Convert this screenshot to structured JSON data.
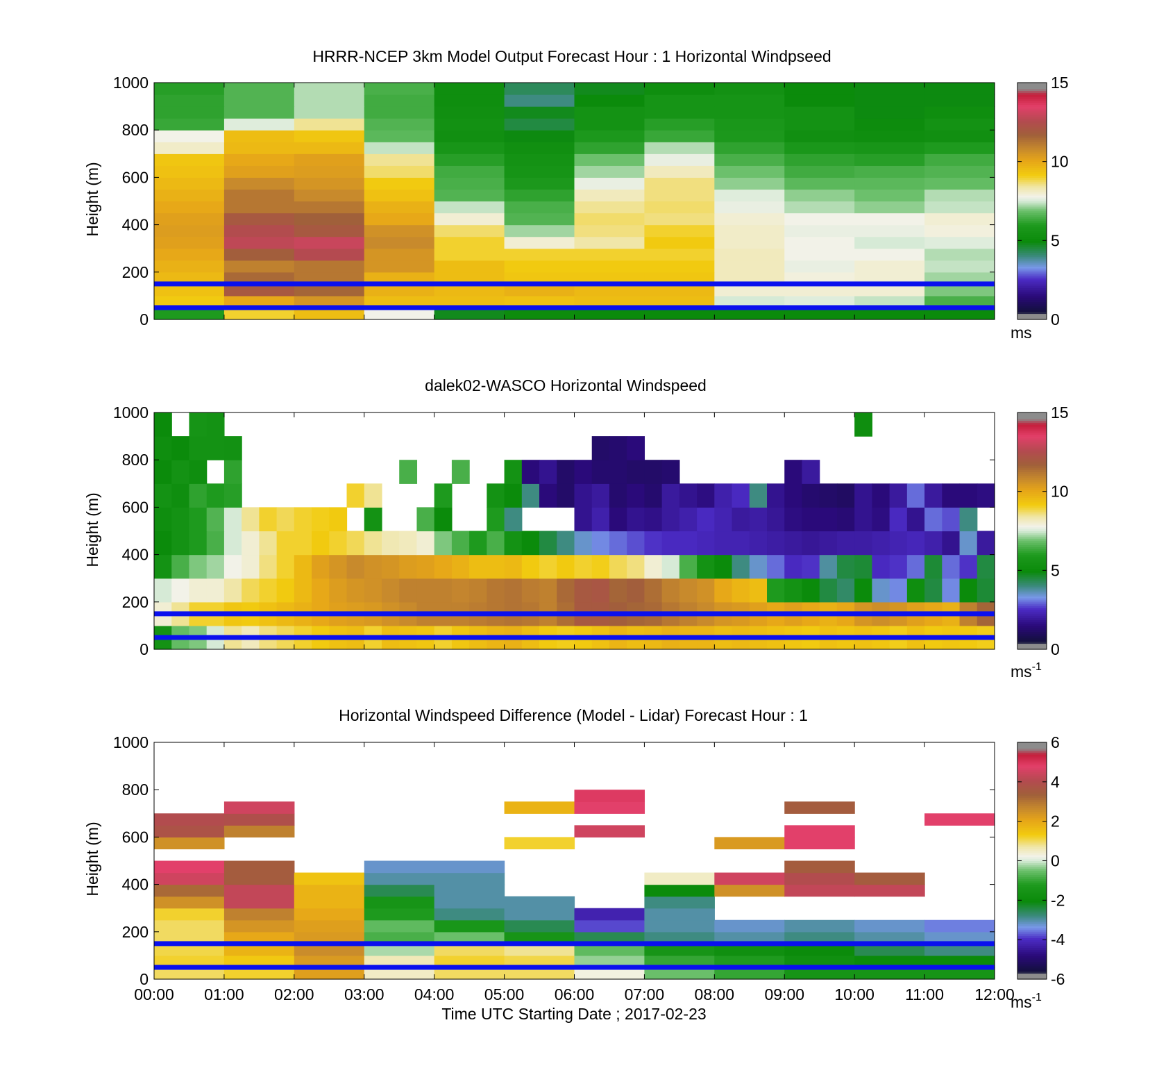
{
  "chart_data": [
    {
      "type": "heatmap",
      "title": "HRRR-NCEP 3km Model Output   Forecast Hour : 1 Horizontal Windpseed",
      "ylabel": "Height (m)",
      "xlim": [
        0,
        12
      ],
      "ylim": [
        0,
        1000
      ],
      "yticks": [
        0,
        200,
        400,
        600,
        800,
        1000
      ],
      "clim": [
        0,
        15
      ],
      "cbar_ticks": [
        0,
        5,
        10,
        15
      ],
      "cbar_unit": "ms",
      "cbar_unit_sup": "",
      "reference_lines_m": [
        50,
        150
      ],
      "x_hours": [
        0,
        1,
        2,
        3,
        4,
        5,
        6,
        7,
        8,
        9,
        10,
        11
      ],
      "cell_width_hours": 1,
      "heights_m": [
        25,
        75,
        125,
        175,
        225,
        275,
        325,
        375,
        425,
        475,
        525,
        575,
        625,
        675,
        725,
        775,
        825,
        875,
        925,
        975
      ],
      "cell_height_m": 50,
      "values": [
        [
          6,
          9,
          9.5,
          7.8,
          4.8,
          5.1,
          5,
          5,
          5,
          5,
          5,
          5
        ],
        [
          9.2,
          10,
          10.5,
          9.5,
          9.5,
          9.4,
          9.5,
          9.5,
          7.5,
          7.6,
          7.4,
          6.5
        ],
        [
          9.4,
          12,
          11.6,
          9.8,
          9.6,
          9.8,
          9.6,
          9.6,
          8,
          8,
          8,
          7
        ],
        [
          9.6,
          11.5,
          11.2,
          9.8,
          9.5,
          9.3,
          9.3,
          9.3,
          8.2,
          7.9,
          8,
          7.2
        ],
        [
          9.8,
          11,
          11.2,
          10.5,
          9.5,
          9.2,
          9.2,
          9.2,
          8.2,
          7.7,
          8,
          7.4
        ],
        [
          10,
          11.8,
          12.6,
          10.5,
          9,
          9,
          9,
          9,
          8.2,
          7.8,
          7.8,
          7.3
        ],
        [
          10.2,
          12.8,
          13,
          10.8,
          9,
          8,
          8.4,
          9.2,
          8.1,
          7.8,
          7.5,
          7.6
        ],
        [
          10.3,
          12.5,
          12,
          10.6,
          8.7,
          7.2,
          8.6,
          9,
          8.1,
          7.7,
          7.7,
          7.9
        ],
        [
          10.2,
          12,
          11.7,
          10,
          8,
          6.6,
          8.7,
          8.6,
          8,
          7.8,
          7.8,
          8
        ],
        [
          10,
          11.2,
          11.2,
          9.8,
          7.4,
          6.5,
          8.5,
          8.7,
          7.7,
          7.3,
          7.1,
          7.4
        ],
        [
          9.8,
          11.2,
          10.8,
          9.4,
          6.6,
          6.2,
          8.2,
          8.6,
          7.6,
          7.1,
          6.9,
          7.3
        ],
        [
          9.6,
          10.8,
          10.5,
          9.2,
          6.5,
          5.9,
          7.7,
          8.6,
          7.1,
          6.7,
          6.7,
          6.8
        ],
        [
          9.4,
          10.2,
          10.3,
          8.7,
          6.4,
          5.6,
          7.2,
          8.2,
          6.9,
          6.4,
          6.5,
          6.6
        ],
        [
          9.3,
          10,
          10.2,
          8.5,
          6.1,
          5.5,
          6.9,
          7.7,
          6.5,
          6.2,
          6.1,
          6.4
        ],
        [
          8.1,
          9.6,
          9.6,
          7.4,
          5.7,
          5.3,
          6.2,
          7.3,
          6.2,
          5.8,
          5.7,
          6
        ],
        [
          7.8,
          9.5,
          9.3,
          6.7,
          5.3,
          4.9,
          5.9,
          6.3,
          5.9,
          5.3,
          5.2,
          5.3
        ],
        [
          6.3,
          7.6,
          8.5,
          6.6,
          5.4,
          4.5,
          5.5,
          6.1,
          5.8,
          5.5,
          5.1,
          5.5
        ],
        [
          6.2,
          6.6,
          7.3,
          6.4,
          5.3,
          4.8,
          5.5,
          5.6,
          5.6,
          5.5,
          4.9,
          5.2
        ],
        [
          6.2,
          6.6,
          7.3,
          6.4,
          5.2,
          4,
          5,
          5.6,
          5.6,
          5,
          4.9,
          4.9
        ],
        [
          6.1,
          6.6,
          7.3,
          6.5,
          5.2,
          4.3,
          4.8,
          5.2,
          5.4,
          5,
          4.9,
          4.9
        ]
      ]
    },
    {
      "type": "heatmap",
      "title": "dalek02-WASCO  Horizontal Windspeed",
      "ylabel": "Height (m)",
      "xlim": [
        0,
        12
      ],
      "ylim": [
        0,
        1000
      ],
      "yticks": [
        0,
        200,
        400,
        600,
        800,
        1000
      ],
      "clim": [
        0,
        15
      ],
      "cbar_ticks": [
        0,
        5,
        10,
        15
      ],
      "cbar_unit": "ms",
      "cbar_unit_sup": "-1",
      "reference_lines_m": [
        50,
        150
      ],
      "x_hours": [
        0,
        0.25,
        0.5,
        0.75,
        1,
        1.25,
        1.5,
        1.75,
        2,
        2.25,
        2.5,
        2.75,
        3,
        3.25,
        3.5,
        3.75,
        4,
        4.25,
        4.5,
        4.75,
        5,
        5.25,
        5.5,
        5.75,
        6,
        6.25,
        6.5,
        6.75,
        7,
        7.25,
        7.5,
        7.75,
        8,
        8.25,
        8.5,
        8.75,
        9,
        9.25,
        9.5,
        9.75,
        10,
        10.25,
        10.5,
        10.75,
        11,
        11.25,
        11.5,
        11.75
      ],
      "cell_width_hours": 0.25,
      "heights_m": [
        50,
        150,
        250,
        350,
        450,
        550,
        650,
        750,
        850,
        950
      ],
      "cell_height_m": 100,
      "values": [
        [
          5.5,
          6.8,
          7,
          7.5,
          8.5,
          8.2,
          8.6,
          8.8,
          9,
          9.2,
          9.4,
          9.5,
          9,
          9.5,
          9.4,
          9.3,
          9,
          9.3,
          9.5,
          9.7,
          9.8,
          9.5,
          9.2,
          9.1,
          9.2,
          9.4,
          9.7,
          9.5,
          9.6,
          9.8,
          9.7,
          9.7,
          9.5,
          9.6,
          9.5,
          9.4,
          9.3,
          9.2,
          9.4,
          9.3,
          9.4,
          9.3,
          9.1,
          9.4,
          9.2,
          9.3,
          9.2,
          9.1
        ],
        [
          8,
          8.5,
          9,
          9,
          9.3,
          9.2,
          9.4,
          9.6,
          9.8,
          10,
          10.2,
          10.3,
          10.4,
          10.6,
          10.8,
          11,
          11,
          11,
          11.1,
          11.2,
          11.3,
          11.2,
          11,
          11.4,
          12,
          12,
          11.8,
          11.6,
          11.5,
          11.2,
          11,
          10.8,
          10.5,
          10.4,
          10.2,
          10,
          10.2,
          10,
          9.8,
          10,
          10.5,
          10.7,
          10.5,
          10.2,
          10,
          9.8,
          11,
          11.6
        ],
        [
          7.5,
          7.8,
          8,
          8,
          8.4,
          8.8,
          9,
          9.2,
          9.6,
          10,
          10.3,
          10.5,
          10.6,
          10.8,
          11,
          11,
          11,
          10.9,
          11,
          11.2,
          11.3,
          11.1,
          11,
          11.5,
          12,
          12.1,
          11.6,
          11.8,
          11.4,
          11,
          10.8,
          10.6,
          10,
          9.7,
          9.5,
          6,
          5.5,
          5,
          4.5,
          4.2,
          5,
          3.5,
          3.2,
          5.2,
          4.5,
          3.2,
          5,
          4.6
        ],
        [
          5.5,
          6.5,
          7,
          7.2,
          7.8,
          8,
          8.6,
          9,
          9.6,
          10.2,
          10.5,
          10.8,
          10.6,
          10.5,
          10.3,
          10.2,
          10,
          9.8,
          9.5,
          9.5,
          9.6,
          9.2,
          9,
          9.2,
          9,
          9.1,
          8.8,
          8.6,
          8,
          7.5,
          6.5,
          5.5,
          5,
          4,
          3.5,
          3,
          2.5,
          2.6,
          3.8,
          4.5,
          4.6,
          2.5,
          2.6,
          3,
          4.6,
          3,
          2.6,
          4.5
        ],
        [
          5,
          5.5,
          6,
          6.5,
          7.5,
          8,
          8.5,
          9,
          9,
          9.2,
          9,
          8.8,
          8.5,
          8.3,
          8.2,
          8,
          7,
          6.5,
          6,
          6.5,
          5.5,
          5,
          4.5,
          4,
          3.5,
          3.2,
          3,
          2.8,
          2.6,
          2.5,
          2.5,
          2.4,
          2.3,
          2.3,
          2.2,
          2.1,
          2,
          1.9,
          2,
          2.1,
          2.1,
          2.2,
          2.3,
          2.4,
          2.2,
          1.8,
          3.5,
          2
        ],
        [
          5.2,
          5.5,
          6,
          6.6,
          7.5,
          8.5,
          9,
          8.8,
          9,
          9.1,
          9.2,
          null,
          5.5,
          null,
          null,
          6.5,
          5,
          null,
          null,
          6,
          4,
          null,
          null,
          null,
          1.8,
          2.2,
          1.5,
          1.8,
          1.7,
          2,
          2.2,
          2.5,
          2.3,
          2,
          2.1,
          1.9,
          1.6,
          1.5,
          1.5,
          1.4,
          1.8,
          1.6,
          2.5,
          1.8,
          3,
          2.8,
          4,
          null
        ],
        [
          5.5,
          5.2,
          6.2,
          6,
          6.1,
          null,
          null,
          null,
          null,
          null,
          null,
          9,
          8.5,
          null,
          null,
          null,
          6,
          null,
          null,
          5.5,
          5,
          4,
          1.5,
          1.2,
          1.8,
          2,
          1.3,
          1.5,
          1.3,
          2,
          1.8,
          1.6,
          2.2,
          2.5,
          4,
          1.8,
          1.5,
          1.3,
          1.2,
          1.1,
          1.8,
          1.5,
          2,
          3,
          2,
          1.5,
          1.5,
          1.6
        ],
        [
          5,
          5.5,
          5.2,
          null,
          6.2,
          null,
          null,
          null,
          null,
          null,
          null,
          null,
          null,
          null,
          6.5,
          null,
          null,
          6.5,
          null,
          null,
          5.5,
          1.5,
          1.8,
          1.2,
          1.5,
          1.3,
          1.3,
          1.2,
          1.2,
          1.3,
          null,
          null,
          null,
          null,
          null,
          null,
          1.5,
          2,
          null,
          null,
          null,
          null,
          null,
          null,
          null,
          null,
          null,
          null
        ],
        [
          5.2,
          5,
          5.5,
          5.5,
          5.4,
          null,
          null,
          null,
          null,
          null,
          null,
          null,
          null,
          null,
          null,
          null,
          null,
          null,
          null,
          null,
          null,
          null,
          null,
          null,
          null,
          1.2,
          1.3,
          1.5,
          null,
          null,
          null,
          null,
          null,
          null,
          null,
          null,
          null,
          null,
          null,
          null,
          null,
          null,
          null,
          null,
          null,
          null,
          null,
          null
        ],
        [
          5,
          null,
          5.6,
          5.5,
          null,
          null,
          null,
          null,
          null,
          null,
          null,
          null,
          null,
          null,
          null,
          null,
          null,
          null,
          null,
          null,
          null,
          null,
          null,
          null,
          null,
          null,
          null,
          null,
          null,
          null,
          null,
          null,
          null,
          null,
          null,
          null,
          null,
          null,
          null,
          null,
          5.2,
          null,
          null,
          null,
          null,
          null,
          null,
          null
        ]
      ]
    },
    {
      "type": "heatmap",
      "title": "Horizontal Windspeed Difference (Model - Lidar) Forecast Hour : 1",
      "xlabel": "Time UTC  Starting Date ; 2017-02-23",
      "ylabel": "Height (m)",
      "xlim": [
        0,
        12
      ],
      "ylim": [
        0,
        1000
      ],
      "yticks": [
        0,
        200,
        400,
        600,
        800,
        1000
      ],
      "xticks": [
        "00:00",
        "01:00",
        "02:00",
        "03:00",
        "04:00",
        "05:00",
        "06:00",
        "07:00",
        "08:00",
        "09:00",
        "10:00",
        "11:00",
        "12:00"
      ],
      "clim": [
        -6,
        6
      ],
      "cbar_ticks": [
        -6,
        -4,
        -2,
        0,
        2,
        4,
        6
      ],
      "cbar_unit": "ms",
      "cbar_unit_sup": "-1",
      "reference_lines_m": [
        50,
        150
      ],
      "x_hours": [
        0,
        1,
        2,
        3,
        4,
        5,
        6,
        7,
        8,
        9,
        10,
        11
      ],
      "cell_width_hours": 1,
      "heights_m": [
        25,
        75,
        125,
        175,
        225,
        275,
        325,
        375,
        425,
        475,
        525,
        575,
        625,
        675,
        725,
        775
      ],
      "cell_height_m": 50,
      "values": [
        [
          1,
          1.2,
          2.2,
          0.5,
          1,
          1,
          0.3,
          -0.5,
          -1,
          -1.5,
          -1.5,
          -1.5
        ],
        [
          1.2,
          1.4,
          2.3,
          0.6,
          1.2,
          1.1,
          -0.3,
          -1,
          -1.2,
          -1.8,
          -2,
          -2
        ],
        [
          1.1,
          1.8,
          2.6,
          -0.2,
          1,
          0.8,
          -0.6,
          -1.5,
          -1.8,
          -2,
          -2.5,
          -2.8
        ],
        [
          1,
          2,
          2.3,
          -0.8,
          -0.5,
          -1.5,
          -2.5,
          -2.8,
          -3,
          -2.8,
          -3,
          -3.2
        ],
        [
          1,
          2.4,
          2.2,
          -0.6,
          -1.4,
          -2.5,
          -3.8,
          -3,
          -3.2,
          -3,
          -3.2,
          -3.5
        ],
        [
          1.2,
          2.8,
          2,
          -1.2,
          -2.8,
          -3,
          -4.2,
          -3,
          null,
          null,
          null,
          null
        ],
        [
          2.5,
          4.3,
          1.8,
          -1.5,
          -3,
          -3,
          null,
          -2.8,
          null,
          null,
          null,
          null
        ],
        [
          3.2,
          4.3,
          1.8,
          -2.5,
          -3,
          null,
          null,
          -2,
          2.5,
          4.3,
          4.3,
          null
        ],
        [
          4.5,
          3.5,
          1.5,
          -3,
          -3,
          null,
          null,
          0.5,
          4.5,
          4,
          3.5,
          null
        ],
        [
          4.8,
          3.5,
          null,
          -3.2,
          -3.2,
          null,
          null,
          null,
          null,
          3.5,
          null,
          null
        ],
        [
          null,
          null,
          null,
          null,
          null,
          null,
          null,
          null,
          null,
          null,
          null,
          null
        ],
        [
          2.5,
          null,
          null,
          null,
          null,
          1.2,
          null,
          null,
          2.3,
          4.8,
          null,
          null
        ],
        [
          3.8,
          2.8,
          null,
          null,
          null,
          null,
          4.5,
          null,
          null,
          4.8,
          null,
          null
        ],
        [
          4,
          3.9,
          null,
          null,
          null,
          null,
          null,
          null,
          null,
          null,
          null,
          4.8
        ],
        [
          null,
          4.5,
          null,
          null,
          null,
          1.8,
          4.8,
          null,
          null,
          3.5,
          null,
          null
        ],
        [
          null,
          null,
          null,
          null,
          null,
          null,
          4.9,
          null,
          null,
          null,
          null,
          null
        ]
      ]
    }
  ]
}
